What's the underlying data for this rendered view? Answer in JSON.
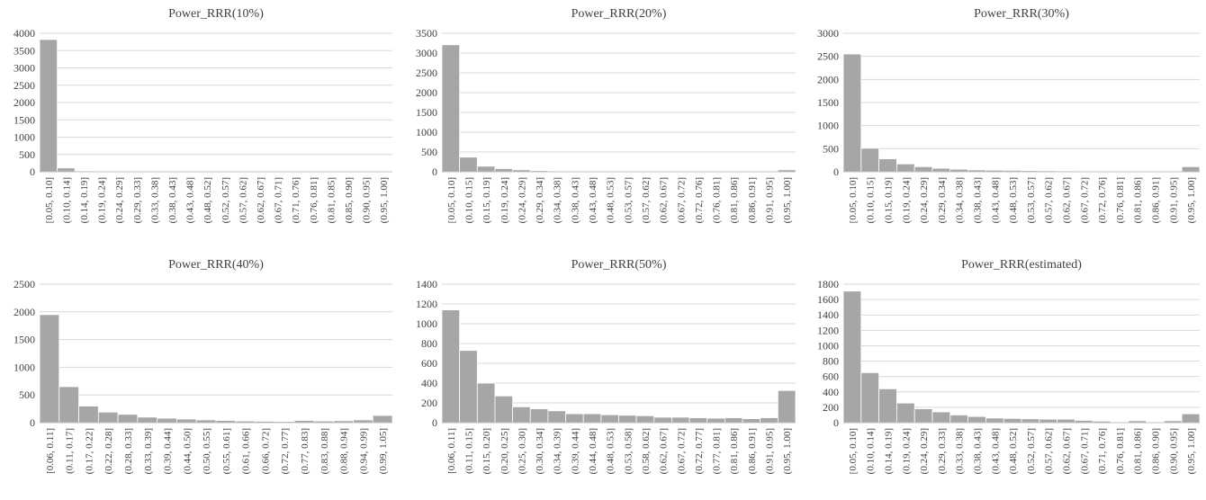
{
  "style": {
    "bar_color": "#a6a6a6",
    "bar_edge": "#ffffff",
    "grid_color": "#d9d9d9",
    "axis_color": "#bfbfbf",
    "text_color": "#404040"
  },
  "chart_data": [
    {
      "type": "bar",
      "title": "Power_RRR(10%)",
      "ylim": [
        0,
        4000
      ],
      "yticks": [
        0,
        500,
        1000,
        1500,
        2000,
        2500,
        3000,
        3500,
        4000
      ],
      "grid": true,
      "categories": [
        "[0.05, 0.10]",
        "(0.10, 0.14]",
        "(0.14, 0.19]",
        "(0.19, 0.24]",
        "(0.24, 0.29]",
        "(0.29, 0.33]",
        "(0.33, 0.38]",
        "(0.38, 0.43]",
        "(0.43, 0.48]",
        "(0.48, 0.52]",
        "(0.52, 0.57]",
        "(0.57, 0.62]",
        "(0.62, 0.67]",
        "(0.67, 0.71]",
        "(0.71, 0.76]",
        "(0.76, 0.81]",
        "(0.81, 0.85]",
        "(0.85, 0.90]",
        "(0.90, 0.95]",
        "(0.95, 1.00]"
      ],
      "values": [
        3820,
        110,
        25,
        8,
        4,
        2,
        1,
        1,
        0,
        0,
        0,
        0,
        0,
        0,
        0,
        0,
        0,
        0,
        0,
        0
      ]
    },
    {
      "type": "bar",
      "title": "Power_RRR(20%)",
      "ylim": [
        0,
        3500
      ],
      "yticks": [
        0,
        500,
        1000,
        1500,
        2000,
        2500,
        3000,
        3500
      ],
      "grid": true,
      "categories": [
        "[0.05, 0.10]",
        "(0.10, 0.15]",
        "(0.15, 0.19]",
        "(0.19, 0.24]",
        "(0.24, 0.29]",
        "(0.29, 0.34]",
        "(0.34, 0.38]",
        "(0.38, 0.43]",
        "(0.43, 0.48]",
        "(0.48, 0.53]",
        "(0.53, 0.57]",
        "(0.57, 0.62]",
        "(0.62, 0.67]",
        "(0.67, 0.72]",
        "(0.72, 0.76]",
        "(0.76, 0.81]",
        "(0.81, 0.86]",
        "(0.86, 0.91]",
        "(0.91, 0.95]",
        "(0.95, 1.00]"
      ],
      "values": [
        3210,
        370,
        140,
        80,
        50,
        30,
        20,
        12,
        8,
        6,
        5,
        4,
        3,
        3,
        2,
        2,
        2,
        2,
        3,
        50
      ]
    },
    {
      "type": "bar",
      "title": "Power_RRR(30%)",
      "ylim": [
        0,
        3000
      ],
      "yticks": [
        0,
        500,
        1000,
        1500,
        2000,
        2500,
        3000
      ],
      "grid": true,
      "categories": [
        "[0.05, 0.10]",
        "(0.10, 0.15]",
        "(0.15, 0.19]",
        "(0.19, 0.24]",
        "(0.24, 0.29]",
        "(0.29, 0.34]",
        "(0.34, 0.38]",
        "(0.38, 0.43]",
        "(0.43, 0.48]",
        "(0.48, 0.53]",
        "(0.53, 0.57]",
        "(0.57, 0.62]",
        "(0.62, 0.67]",
        "(0.67, 0.72]",
        "(0.72, 0.76]",
        "(0.76, 0.81]",
        "(0.81, 0.86]",
        "(0.86, 0.91]",
        "(0.91, 0.95]",
        "(0.95, 1.00]"
      ],
      "values": [
        2550,
        510,
        280,
        170,
        110,
        75,
        55,
        40,
        35,
        30,
        25,
        22,
        18,
        15,
        12,
        10,
        8,
        6,
        5,
        110
      ]
    },
    {
      "type": "bar",
      "title": "Power_RRR(40%)",
      "ylim": [
        0,
        2500
      ],
      "yticks": [
        0,
        500,
        1000,
        1500,
        2000,
        2500
      ],
      "grid": true,
      "categories": [
        "[0.06, 0.11]",
        "(0.11, 0.17]",
        "(0.17, 0.22]",
        "(0.22, 0.28]",
        "(0.28, 0.33]",
        "(0.33, 0.39]",
        "(0.39, 0.44]",
        "(0.44, 0.50]",
        "(0.50, 0.55]",
        "(0.55, 0.61]",
        "(0.61, 0.66]",
        "(0.66, 0.72]",
        "(0.72, 0.77]",
        "(0.77, 0.83]",
        "(0.83, 0.88]",
        "(0.88, 0.94]",
        "(0.94, 0.99]",
        "(0.99, 1.05]"
      ],
      "values": [
        1950,
        650,
        300,
        190,
        150,
        100,
        80,
        65,
        50,
        40,
        30,
        25,
        20,
        40,
        30,
        35,
        50,
        130
      ]
    },
    {
      "type": "bar",
      "title": "Power_RRR(50%)",
      "ylim": [
        0,
        1400
      ],
      "yticks": [
        0,
        200,
        400,
        600,
        800,
        1000,
        1200,
        1400
      ],
      "grid": true,
      "categories": [
        "[0.06, 0.11]",
        "(0.11, 0.15]",
        "(0.15, 0.20]",
        "(0.20, 0.25]",
        "(0.25, 0.30]",
        "(0.30, 0.34]",
        "(0.34, 0.39]",
        "(0.39, 0.44]",
        "(0.44, 0.48]",
        "(0.48, 0.53]",
        "(0.53, 0.58]",
        "(0.58, 0.62]",
        "(0.62, 0.67]",
        "(0.67, 0.72]",
        "(0.72, 0.77]",
        "(0.77, 0.81]",
        "(0.81, 0.86]",
        "(0.86, 0.91]",
        "(0.91, 0.95]",
        "(0.95, 1.00]"
      ],
      "values": [
        1140,
        730,
        400,
        270,
        160,
        140,
        120,
        90,
        90,
        80,
        75,
        70,
        55,
        55,
        50,
        45,
        50,
        40,
        50,
        325
      ]
    },
    {
      "type": "bar",
      "title": "Power_RRR(estimated)",
      "ylim": [
        0,
        1800
      ],
      "yticks": [
        0,
        200,
        400,
        600,
        800,
        1000,
        1200,
        1400,
        1600,
        1800
      ],
      "grid": true,
      "categories": [
        "[0.05, 0.10]",
        "(0.10, 0.14]",
        "(0.14, 0.19]",
        "(0.19, 0.24]",
        "(0.24, 0.29]",
        "(0.29, 0.33]",
        "(0.33, 0.38]",
        "(0.38, 0.43]",
        "(0.43, 0.48]",
        "(0.48, 0.52]",
        "(0.52, 0.57]",
        "(0.57, 0.62]",
        "(0.62, 0.67]",
        "(0.67, 0.71]",
        "(0.71, 0.76]",
        "(0.76, 0.81]",
        "(0.81, 0.86]",
        "(0.86, 0.90]",
        "(0.90, 0.95]",
        "(0.95, 1.00]"
      ],
      "values": [
        1710,
        650,
        440,
        255,
        180,
        140,
        100,
        80,
        60,
        55,
        50,
        45,
        45,
        30,
        20,
        10,
        25,
        10,
        25,
        115
      ]
    }
  ]
}
